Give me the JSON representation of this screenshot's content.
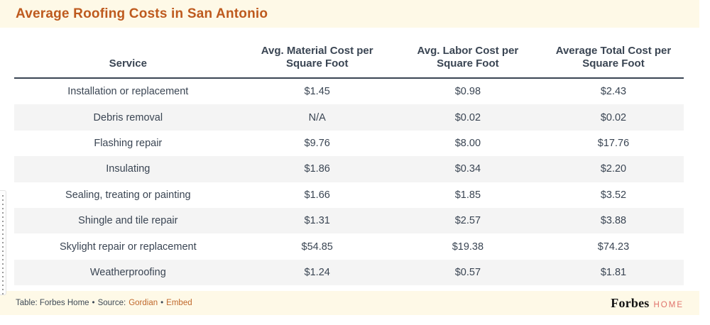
{
  "title": "Average Roofing Costs in San Antonio",
  "chart_data": {
    "type": "table",
    "title": "Average Roofing Costs in San Antonio",
    "columns": [
      "Service",
      "Avg. Material Cost per Square Foot",
      "Avg. Labor Cost per Square Foot",
      "Average Total Cost per Square Foot"
    ],
    "rows": [
      [
        "Installation or replacement",
        "$1.45",
        "$0.98",
        "$2.43"
      ],
      [
        "Debris removal",
        "N/A",
        "$0.02",
        "$0.02"
      ],
      [
        "Flashing repair",
        "$9.76",
        "$8.00",
        "$17.76"
      ],
      [
        "Insulating",
        "$1.86",
        "$0.34",
        "$2.20"
      ],
      [
        "Sealing, treating or painting",
        "$1.66",
        "$1.85",
        "$3.52"
      ],
      [
        "Shingle and tile repair",
        "$1.31",
        "$2.57",
        "$3.88"
      ],
      [
        "Skylight repair or replacement",
        "$54.85",
        "$19.38",
        "$74.23"
      ],
      [
        "Weatherproofing",
        "$1.24",
        "$0.57",
        "$1.81"
      ]
    ],
    "layout": {
      "striped_rows": true,
      "stripe_color": "#F4F4F4",
      "header_rule_color": "#3A4553"
    }
  },
  "footer": {
    "attribution_prefix": "Table: Forbes Home",
    "bullet": "•",
    "source_label": "Source:",
    "source_link_label": "Gordian",
    "embed_link_label": "Embed",
    "logo_primary": "Forbes",
    "logo_secondary": "HOME"
  },
  "colors": {
    "title_orange": "#BE5A1E",
    "cream_band": "#FEF9E7",
    "text_navy": "#3A4553",
    "link_orange": "#C0682B",
    "logo_home_salmon": "#E0726B",
    "row_stripe_gray": "#F4F4F4"
  }
}
